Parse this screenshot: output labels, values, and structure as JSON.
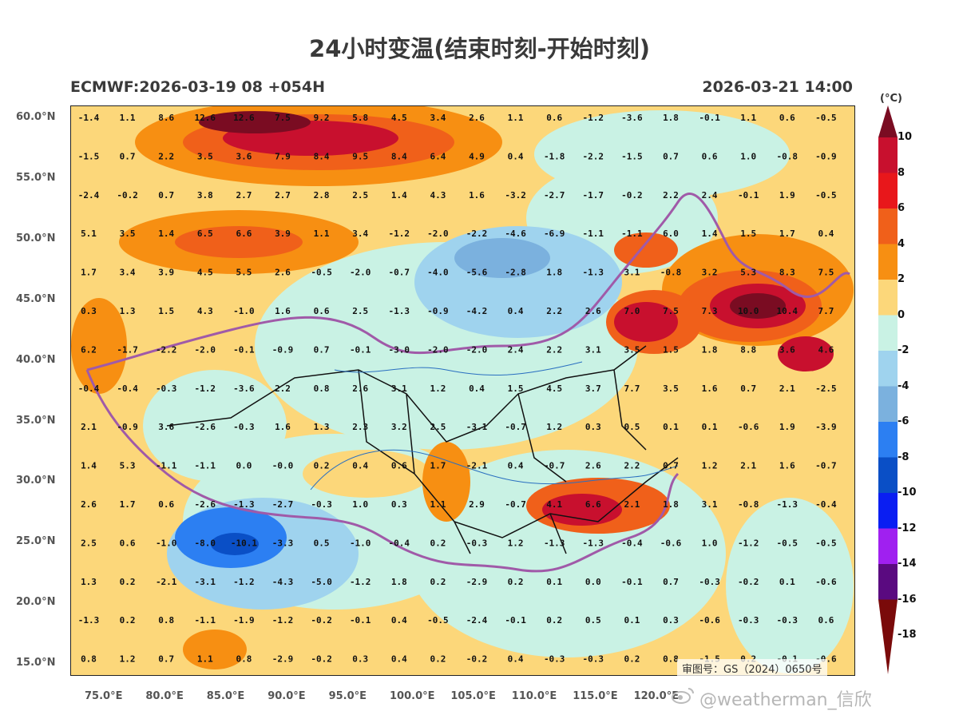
{
  "title": "24小时变温(结束时刻-开始时刻)",
  "subtitle_left": "ECMWF:2026-03-19 08 +054H",
  "subtitle_right": "2026-03-21 14:00",
  "colorbar": {
    "unit": "(°C)",
    "labels": [
      "10",
      "8",
      "6",
      "4",
      "2",
      "0",
      "-2",
      "-4",
      "-6",
      "-8",
      "-10",
      "-12",
      "-14",
      "-16",
      "-18"
    ],
    "colors": [
      "#7a0c22",
      "#c8102e",
      "#e8171b",
      "#f0601a",
      "#f78f12",
      "#fcd77a",
      "#c9f2e4",
      "#9fd3ee",
      "#7bb1de",
      "#2c7ff2",
      "#0a4fc6",
      "#0a1ef2",
      "#a020f0",
      "#5a0a80",
      "#7a0a0a"
    ]
  },
  "lat_labels": [
    "60.0°N",
    "55.0°N",
    "50.0°N",
    "45.0°N",
    "40.0°N",
    "35.0°N",
    "30.0°N",
    "25.0°N",
    "20.0°N",
    "15.0°N"
  ],
  "lon_labels": [
    "75.0°E",
    "80.0°E",
    "85.0°E",
    "90.0°E",
    "95.0°E",
    "100.0°E",
    "105.0°E",
    "110.0°E",
    "115.0°E",
    "120.0°E"
  ],
  "grid_values": [
    [
      "-1.4",
      "1.1",
      "8.6",
      "12.6",
      "12.6",
      "7.5",
      "9.2",
      "5.8",
      "4.5",
      "3.4",
      "2.6",
      "1.1",
      "0.6",
      "-1.2",
      "-3.6",
      "1.8",
      "-0.1",
      "1.1",
      "0.6",
      "-0.5"
    ],
    [
      "-1.5",
      "0.7",
      "2.2",
      "3.5",
      "3.6",
      "7.9",
      "8.4",
      "9.5",
      "8.4",
      "6.4",
      "4.9",
      "0.4",
      "-1.8",
      "-2.2",
      "-1.5",
      "0.7",
      "0.6",
      "1.0",
      "-0.8",
      "-0.9"
    ],
    [
      "-2.4",
      "-0.2",
      "0.7",
      "3.8",
      "2.7",
      "2.7",
      "2.8",
      "2.5",
      "1.4",
      "4.3",
      "1.6",
      "-3.2",
      "-2.7",
      "-1.7",
      "-0.2",
      "2.2",
      "2.4",
      "-0.1",
      "1.9",
      "-0.5"
    ],
    [
      "5.1",
      "3.5",
      "1.4",
      "6.5",
      "6.6",
      "3.9",
      "1.1",
      "3.4",
      "-1.2",
      "-2.0",
      "-2.2",
      "-4.6",
      "-6.9",
      "-1.1",
      "-1.1",
      "6.0",
      "1.4",
      "1.5",
      "1.7",
      "0.4"
    ],
    [
      "1.7",
      "3.4",
      "3.9",
      "4.5",
      "5.5",
      "2.6",
      "-0.5",
      "-2.0",
      "-0.7",
      "-4.0",
      "-5.6",
      "-2.8",
      "1.8",
      "-1.3",
      "3.1",
      "-0.8",
      "3.2",
      "5.3",
      "8.3",
      "7.5"
    ],
    [
      "0.3",
      "1.3",
      "1.5",
      "4.3",
      "-1.0",
      "1.6",
      "0.6",
      "2.5",
      "-1.3",
      "-0.9",
      "-4.2",
      "0.4",
      "2.2",
      "2.6",
      "7.0",
      "7.5",
      "7.3",
      "10.0",
      "10.4",
      "7.7"
    ],
    [
      "6.2",
      "-1.7",
      "-2.2",
      "-2.0",
      "-0.1",
      "-0.9",
      "0.7",
      "-0.1",
      "-3.0",
      "-2.0",
      "-2.0",
      "2.4",
      "2.2",
      "3.1",
      "3.5",
      "1.5",
      "1.8",
      "8.8",
      "3.6",
      "4.6"
    ],
    [
      "-0.4",
      "-0.4",
      "-0.3",
      "-1.2",
      "-3.6",
      "2.2",
      "0.8",
      "2.6",
      "3.1",
      "1.2",
      "0.4",
      "1.5",
      "4.5",
      "3.7",
      "7.7",
      "3.5",
      "1.6",
      "0.7",
      "2.1",
      "-2.5"
    ],
    [
      "2.1",
      "-0.9",
      "3.6",
      "-2.6",
      "-0.3",
      "1.6",
      "1.3",
      "2.3",
      "3.2",
      "2.5",
      "-3.1",
      "-0.7",
      "1.2",
      "0.3",
      "0.5",
      "0.1",
      "0.1",
      "-0.6",
      "1.9",
      "-3.9"
    ],
    [
      "1.4",
      "5.3",
      "-1.1",
      "-1.1",
      "0.0",
      "-0.0",
      "0.2",
      "0.4",
      "0.6",
      "1.7",
      "-2.1",
      "0.4",
      "-0.7",
      "2.6",
      "2.2",
      "0.7",
      "1.2",
      "2.1",
      "1.6",
      "-0.7"
    ],
    [
      "2.6",
      "1.7",
      "0.6",
      "-2.6",
      "-1.3",
      "-2.7",
      "-0.3",
      "1.0",
      "0.3",
      "1.1",
      "2.9",
      "-0.7",
      "4.1",
      "6.6",
      "2.1",
      "1.8",
      "3.1",
      "-0.8",
      "-1.3",
      "-0.4"
    ],
    [
      "2.5",
      "0.6",
      "-1.0",
      "-8.0",
      "-10.1",
      "-3.3",
      "0.5",
      "-1.0",
      "-0.4",
      "0.2",
      "-0.3",
      "1.2",
      "-1.3",
      "-1.3",
      "-0.4",
      "-0.6",
      "1.0",
      "-1.2",
      "-0.5",
      "-0.5"
    ],
    [
      "1.3",
      "0.2",
      "-2.1",
      "-3.1",
      "-1.2",
      "-4.3",
      "-5.0",
      "-1.2",
      "1.8",
      "0.2",
      "-2.9",
      "0.2",
      "0.1",
      "0.0",
      "-0.1",
      "0.7",
      "-0.3",
      "-0.2",
      "0.1",
      "-0.6"
    ],
    [
      "-1.3",
      "0.2",
      "0.8",
      "-1.1",
      "-1.9",
      "-1.2",
      "-0.2",
      "-0.1",
      "0.4",
      "-0.5",
      "-2.4",
      "-0.1",
      "0.2",
      "0.5",
      "0.1",
      "0.3",
      "-0.6",
      "-0.3",
      "-0.3",
      "0.6"
    ],
    [
      "0.8",
      "1.2",
      "0.7",
      "1.1",
      "0.8",
      "-2.9",
      "-0.2",
      "0.3",
      "0.4",
      "0.2",
      "-0.2",
      "0.4",
      "-0.3",
      "-0.3",
      "0.2",
      "0.8",
      "-1.5",
      "0.2",
      "-0.1",
      "-0.6"
    ]
  ],
  "review_number": "审图号：GS（2024）0650号",
  "watermark": "@weatherman_信欣"
}
